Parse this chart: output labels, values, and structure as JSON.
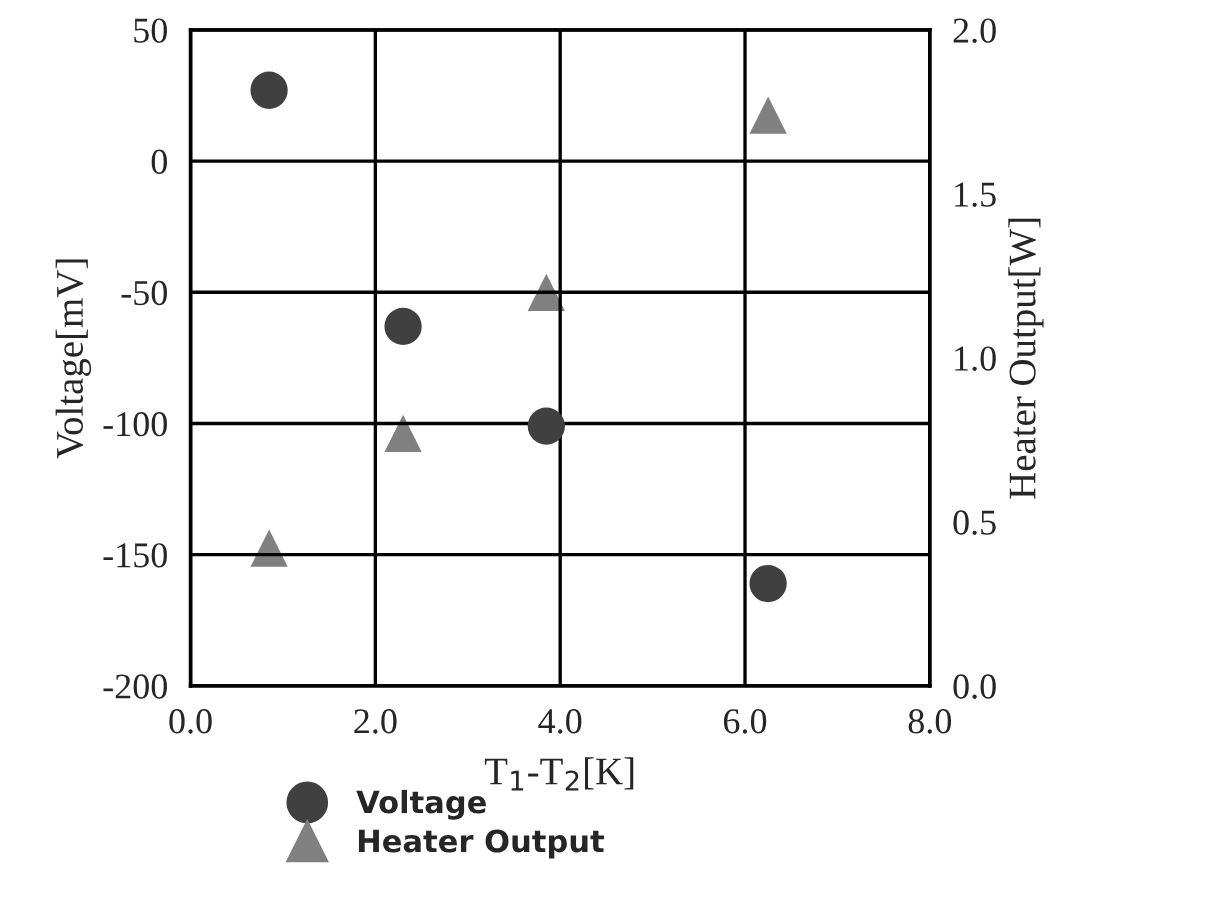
{
  "chart_data": {
    "type": "scatter",
    "xlabel": "T$_{1}$-T$_{2}$[K]",
    "ylabel": "Voltage[mV]",
    "y2label": "Heater Output[W]",
    "series": [
      {
        "name": "Voltage",
        "color": "#404040",
        "marker": "circle",
        "x": [
          0.85,
          2.3,
          3.85,
          6.25
        ],
        "values": [
          27,
          -63,
          -101,
          -161
        ]
      },
      {
        "name": "Heater Output",
        "color": "#808080",
        "marker": "triangle",
        "axis": "y2",
        "x": [
          0.85,
          2.3,
          3.85,
          6.25
        ],
        "values": [
          0.42,
          0.77,
          1.2,
          1.74
        ]
      }
    ],
    "xlim": [
      0,
      8
    ],
    "xticks": [
      {
        "value": 0,
        "label": "0.0"
      },
      {
        "value": 2,
        "label": "2.0"
      },
      {
        "value": 4,
        "label": "4.0"
      },
      {
        "value": 6,
        "label": "6.0"
      },
      {
        "value": 8,
        "label": "8.0"
      }
    ],
    "ylim": [
      -200,
      50
    ],
    "yticks": [
      -200,
      -150,
      -100,
      -50,
      0,
      50
    ],
    "y2lim": [
      0,
      2
    ],
    "y2ticks": [
      {
        "value": 0,
        "label": "0.0"
      },
      {
        "value": 0.5,
        "label": "0.5"
      },
      {
        "value": 1,
        "label": "1.0"
      },
      {
        "value": 1.5,
        "label": "1.5"
      },
      {
        "value": 2,
        "label": "2.0"
      }
    ],
    "grid": true,
    "legend": "bottom left"
  }
}
